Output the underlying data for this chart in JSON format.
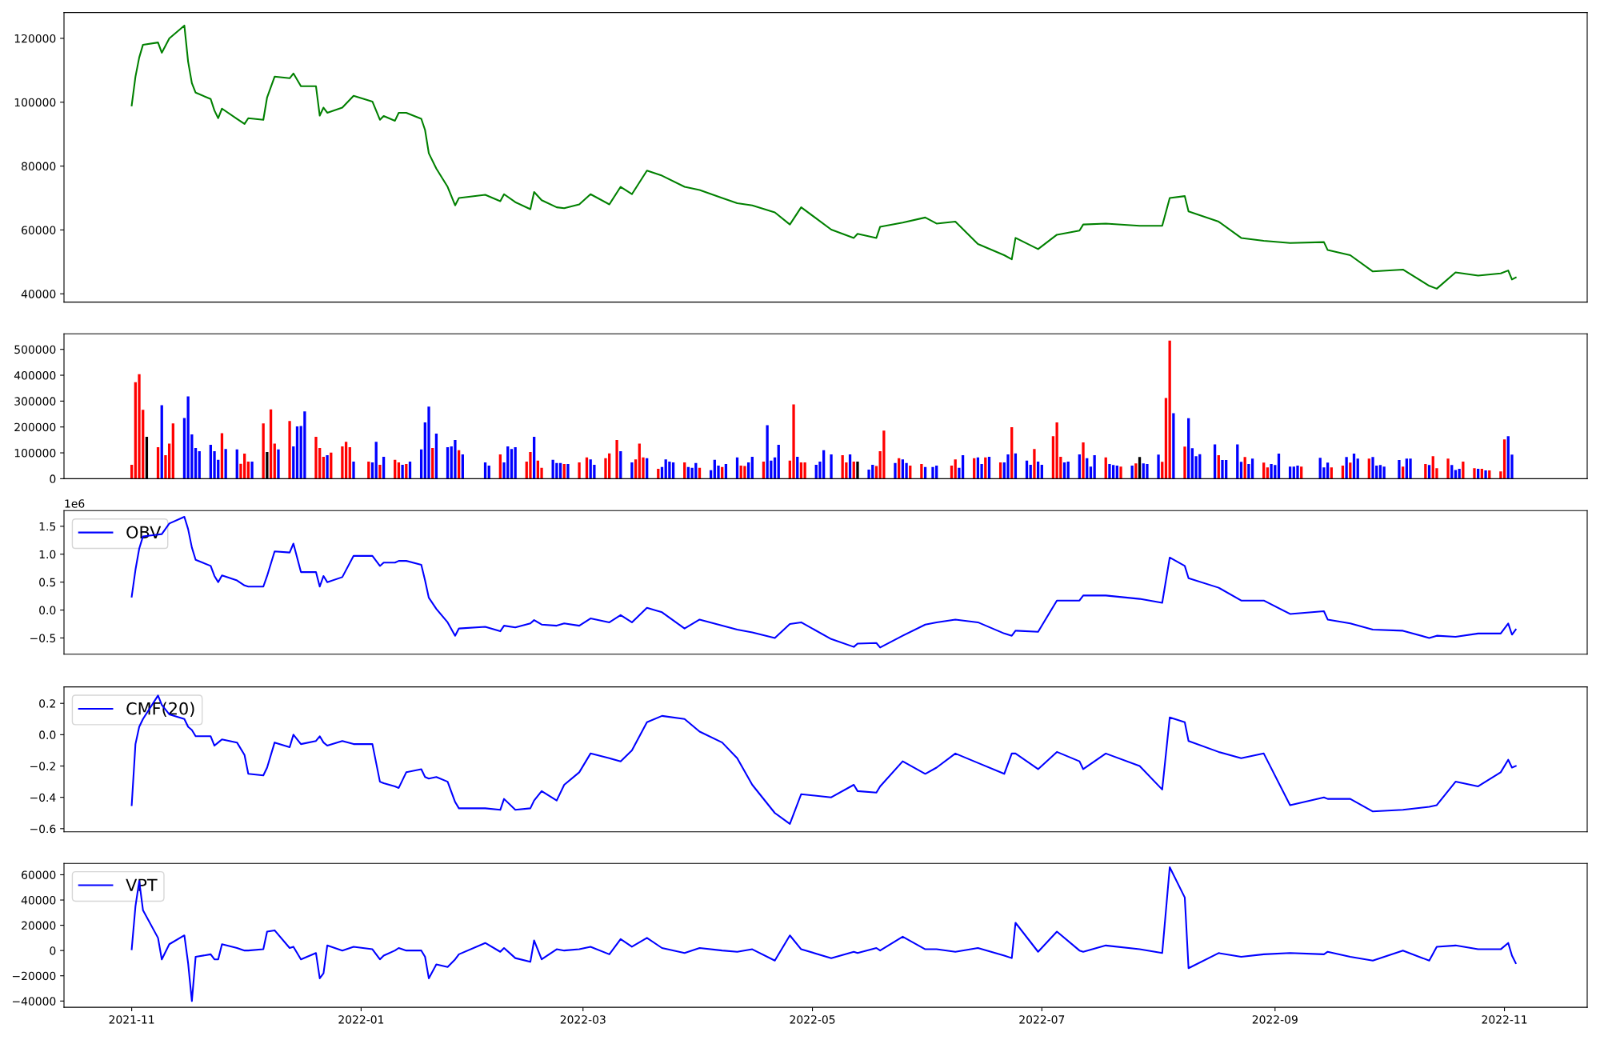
{
  "chart_data": [
    {
      "type": "line",
      "xlim": [
        "2021-10-14",
        "2022-11-23"
      ],
      "ylim": [
        37400,
        128100
      ],
      "yticks": [
        40000,
        60000,
        80000,
        100000,
        120000
      ],
      "tick_labels": "y",
      "series": [
        {
          "color": "#008000",
          "x": [
            "2021-11-01",
            "2021-11-02",
            "2021-11-03",
            "2021-11-04",
            "2021-11-08",
            "2021-11-09",
            "2021-11-11",
            "2021-11-15",
            "2021-11-16",
            "2021-11-17",
            "2021-11-18",
            "2021-11-22",
            "2021-11-23",
            "2021-11-24",
            "2021-11-25",
            "2021-11-29",
            "2021-12-01",
            "2021-12-02",
            "2021-12-06",
            "2021-12-07",
            "2021-12-09",
            "2021-12-13",
            "2021-12-14",
            "2021-12-16",
            "2021-12-20",
            "2021-12-21",
            "2021-12-22",
            "2021-12-23",
            "2021-12-27",
            "2021-12-30",
            "2022-01-04",
            "2022-01-06",
            "2022-01-07",
            "2022-01-10",
            "2022-01-11",
            "2022-01-13",
            "2022-01-17",
            "2022-01-18",
            "2022-01-19",
            "2022-01-21",
            "2022-01-24",
            "2022-01-26",
            "2022-01-27",
            "2022-02-03",
            "2022-02-07",
            "2022-02-08",
            "2022-02-11",
            "2022-02-15",
            "2022-02-16",
            "2022-02-18",
            "2022-02-22",
            "2022-02-24",
            "2022-02-28",
            "2022-03-03",
            "2022-03-08",
            "2022-03-11",
            "2022-03-14",
            "2022-03-18",
            "2022-03-22",
            "2022-03-28",
            "2022-04-01",
            "2022-04-07",
            "2022-04-11",
            "2022-04-15",
            "2022-04-21",
            "2022-04-25",
            "2022-04-28",
            "2022-05-06",
            "2022-05-12",
            "2022-05-13",
            "2022-05-18",
            "2022-05-19",
            "2022-05-25",
            "2022-05-31",
            "2022-06-03",
            "2022-06-08",
            "2022-06-14",
            "2022-06-21",
            "2022-06-23",
            "2022-06-24",
            "2022-06-30",
            "2022-07-05",
            "2022-07-11",
            "2022-07-12",
            "2022-07-18",
            "2022-07-27",
            "2022-08-02",
            "2022-08-04",
            "2022-08-08",
            "2022-08-09",
            "2022-08-17",
            "2022-08-23",
            "2022-08-29",
            "2022-09-05",
            "2022-09-14",
            "2022-09-15",
            "2022-09-21",
            "2022-09-27",
            "2022-10-05",
            "2022-10-12",
            "2022-10-14",
            "2022-10-19",
            "2022-10-25",
            "2022-10-31",
            "2022-11-02",
            "2022-11-03",
            "2022-11-04"
          ],
          "values": [
            99000,
            108000,
            114000,
            118000,
            118700,
            115500,
            120000,
            124000,
            112700,
            106000,
            103000,
            101000,
            97400,
            95000,
            98000,
            94800,
            93200,
            95000,
            94500,
            101500,
            108000,
            107500,
            109000,
            105000,
            105000,
            95800,
            98300,
            96700,
            98300,
            102000,
            100200,
            94500,
            95700,
            94200,
            96700,
            96700,
            94800,
            91300,
            84000,
            79200,
            73500,
            67700,
            70000,
            71000,
            69000,
            71200,
            68700,
            66500,
            71900,
            69300,
            67100,
            66800,
            68000,
            71200,
            68000,
            73500,
            71200,
            78600,
            77000,
            73500,
            72500,
            70000,
            68400,
            67700,
            65500,
            61700,
            67100,
            60100,
            57500,
            58800,
            57500,
            61000,
            62300,
            63900,
            62000,
            62600,
            55600,
            52100,
            50800,
            57500,
            54000,
            58500,
            59800,
            61700,
            62000,
            61300,
            61300,
            70000,
            70600,
            65800,
            62600,
            57500,
            56600,
            55900,
            56200,
            53700,
            52100,
            47000,
            47600,
            42500,
            41600,
            46700,
            45700,
            46400,
            47300,
            44500,
            45100
          ]
        }
      ]
    },
    {
      "type": "bar",
      "xlim": [
        "2021-10-14",
        "2022-11-23"
      ],
      "ylim": [
        0,
        560000
      ],
      "yticks": [
        0,
        100000,
        200000,
        300000,
        400000,
        500000
      ],
      "tick_labels": "y",
      "x": [
        "2021-11-01",
        "2021-11-02",
        "2021-11-03",
        "2021-11-04",
        "2021-11-05",
        "2021-11-08",
        "2021-11-09",
        "2021-11-10",
        "2021-11-11",
        "2021-11-12",
        "2021-11-15",
        "2021-11-16",
        "2021-11-17",
        "2021-11-18",
        "2021-11-19",
        "2021-11-22",
        "2021-11-23",
        "2021-11-24",
        "2021-11-25",
        "2021-11-26",
        "2021-11-29",
        "2021-11-30",
        "2021-12-01",
        "2021-12-02",
        "2021-12-03",
        "2021-12-06",
        "2021-12-07",
        "2021-12-08",
        "2021-12-09",
        "2021-12-10",
        "2021-12-13",
        "2021-12-14",
        "2021-12-15",
        "2021-12-16",
        "2021-12-17",
        "2021-12-20",
        "2021-12-21",
        "2021-12-22",
        "2021-12-23",
        "2021-12-24",
        "2021-12-27",
        "2021-12-28",
        "2021-12-29",
        "2021-12-30",
        "2022-01-03",
        "2022-01-04",
        "2022-01-05",
        "2022-01-06",
        "2022-01-07",
        "2022-01-10",
        "2022-01-11",
        "2022-01-12",
        "2022-01-13",
        "2022-01-14",
        "2022-01-17",
        "2022-01-18",
        "2022-01-19",
        "2022-01-20",
        "2022-01-21",
        "2022-01-24",
        "2022-01-25",
        "2022-01-26",
        "2022-01-27",
        "2022-01-28",
        "2022-02-03",
        "2022-02-04",
        "2022-02-07",
        "2022-02-08",
        "2022-02-09",
        "2022-02-10",
        "2022-02-11",
        "2022-02-14",
        "2022-02-15",
        "2022-02-16",
        "2022-02-17",
        "2022-02-18",
        "2022-02-21",
        "2022-02-22",
        "2022-02-23",
        "2022-02-24",
        "2022-02-25",
        "2022-02-28",
        "2022-03-02",
        "2022-03-03",
        "2022-03-04",
        "2022-03-07",
        "2022-03-08",
        "2022-03-10",
        "2022-03-11",
        "2022-03-14",
        "2022-03-15",
        "2022-03-16",
        "2022-03-17",
        "2022-03-18",
        "2022-03-21",
        "2022-03-22",
        "2022-03-23",
        "2022-03-24",
        "2022-03-25",
        "2022-03-28",
        "2022-03-29",
        "2022-03-30",
        "2022-03-31",
        "2022-04-01",
        "2022-04-04",
        "2022-04-05",
        "2022-04-06",
        "2022-04-07",
        "2022-04-08",
        "2022-04-11",
        "2022-04-12",
        "2022-04-13",
        "2022-04-14",
        "2022-04-15",
        "2022-04-18",
        "2022-04-19",
        "2022-04-20",
        "2022-04-21",
        "2022-04-22",
        "2022-04-25",
        "2022-04-26",
        "2022-04-27",
        "2022-04-28",
        "2022-04-29",
        "2022-05-02",
        "2022-05-03",
        "2022-05-04",
        "2022-05-06",
        "2022-05-09",
        "2022-05-10",
        "2022-05-11",
        "2022-05-12",
        "2022-05-13",
        "2022-05-16",
        "2022-05-17",
        "2022-05-18",
        "2022-05-19",
        "2022-05-20",
        "2022-05-23",
        "2022-05-24",
        "2022-05-25",
        "2022-05-26",
        "2022-05-27",
        "2022-05-30",
        "2022-05-31",
        "2022-06-02",
        "2022-06-03",
        "2022-06-07",
        "2022-06-08",
        "2022-06-09",
        "2022-06-10",
        "2022-06-13",
        "2022-06-14",
        "2022-06-15",
        "2022-06-16",
        "2022-06-17",
        "2022-06-20",
        "2022-06-21",
        "2022-06-22",
        "2022-06-23",
        "2022-06-24",
        "2022-06-27",
        "2022-06-28",
        "2022-06-29",
        "2022-06-30",
        "2022-07-01",
        "2022-07-04",
        "2022-07-05",
        "2022-07-06",
        "2022-07-07",
        "2022-07-08",
        "2022-07-11",
        "2022-07-12",
        "2022-07-13",
        "2022-07-14",
        "2022-07-15",
        "2022-07-18",
        "2022-07-19",
        "2022-07-20",
        "2022-07-21",
        "2022-07-22",
        "2022-07-25",
        "2022-07-26",
        "2022-07-27",
        "2022-07-28",
        "2022-07-29",
        "2022-08-01",
        "2022-08-02",
        "2022-08-03",
        "2022-08-04",
        "2022-08-05",
        "2022-08-08",
        "2022-08-09",
        "2022-08-10",
        "2022-08-11",
        "2022-08-12",
        "2022-08-16",
        "2022-08-17",
        "2022-08-18",
        "2022-08-19",
        "2022-08-22",
        "2022-08-23",
        "2022-08-24",
        "2022-08-25",
        "2022-08-26",
        "2022-08-29",
        "2022-08-30",
        "2022-08-31",
        "2022-09-01",
        "2022-09-02",
        "2022-09-05",
        "2022-09-06",
        "2022-09-07",
        "2022-09-08",
        "2022-09-13",
        "2022-09-14",
        "2022-09-15",
        "2022-09-16",
        "2022-09-19",
        "2022-09-20",
        "2022-09-21",
        "2022-09-22",
        "2022-09-23",
        "2022-09-26",
        "2022-09-27",
        "2022-09-28",
        "2022-09-29",
        "2022-09-30",
        "2022-10-04",
        "2022-10-05",
        "2022-10-06",
        "2022-10-07",
        "2022-10-11",
        "2022-10-12",
        "2022-10-13",
        "2022-10-14",
        "2022-10-17",
        "2022-10-18",
        "2022-10-19",
        "2022-10-20",
        "2022-10-21",
        "2022-10-24",
        "2022-10-25",
        "2022-10-26",
        "2022-10-27",
        "2022-10-28",
        "2022-10-31",
        "2022-11-01",
        "2022-11-02",
        "2022-11-03"
      ],
      "values": [
        54000,
        373000,
        404000,
        266000,
        162000,
        122000,
        284000,
        91000,
        136000,
        214000,
        235000,
        318000,
        171000,
        119000,
        106000,
        131000,
        106000,
        73000,
        176000,
        115000,
        113000,
        58000,
        97000,
        66000,
        66000,
        214000,
        103000,
        268000,
        136000,
        113000,
        223000,
        125000,
        202000,
        204000,
        260000,
        162000,
        119000,
        85000,
        91000,
        101000,
        125000,
        143000,
        122000,
        66000,
        66000,
        63000,
        143000,
        54000,
        85000,
        73000,
        63000,
        54000,
        57000,
        66000,
        113000,
        218000,
        279000,
        119000,
        174000,
        122000,
        125000,
        150000,
        110000,
        94000,
        63000,
        51000,
        94000,
        63000,
        125000,
        115000,
        122000,
        66000,
        103000,
        162000,
        70000,
        42000,
        73000,
        61000,
        61000,
        57000,
        57000,
        63000,
        82000,
        75000,
        54000,
        79000,
        98000,
        150000,
        106000,
        63000,
        75000,
        136000,
        82000,
        79000,
        38000,
        45000,
        75000,
        66000,
        63000,
        63000,
        45000,
        42000,
        61000,
        42000,
        33000,
        73000,
        51000,
        45000,
        57000,
        82000,
        51000,
        49000,
        63000,
        85000,
        66000,
        207000,
        70000,
        82000,
        131000,
        70000,
        287000,
        85000,
        63000,
        63000,
        54000,
        66000,
        110000,
        94000,
        91000,
        63000,
        94000,
        66000,
        66000,
        35000,
        54000,
        49000,
        106000,
        186000,
        61000,
        79000,
        75000,
        61000,
        51000,
        57000,
        45000,
        45000,
        51000,
        51000,
        75000,
        42000,
        91000,
        79000,
        82000,
        57000,
        82000,
        85000,
        63000,
        63000,
        94000,
        199000,
        98000,
        70000,
        54000,
        115000,
        66000,
        54000,
        164000,
        218000,
        85000,
        63000,
        66000,
        94000,
        140000,
        79000,
        47000,
        91000,
        82000,
        57000,
        53000,
        51000,
        47000,
        51000,
        59000,
        84000,
        59000,
        57000,
        93000,
        65000,
        312000,
        534000,
        253000,
        124000,
        234000,
        118000,
        87000,
        95000,
        133000,
        91000,
        72000,
        72000,
        133000,
        65000,
        84000,
        57000,
        78000,
        62000,
        44000,
        57000,
        53000,
        97000,
        47000,
        47000,
        51000,
        47000,
        81000,
        44000,
        62000,
        44000,
        51000,
        84000,
        62000,
        97000,
        78000,
        78000,
        84000,
        51000,
        53000,
        47000,
        72000,
        47000,
        78000,
        78000,
        57000,
        53000,
        87000,
        41000,
        78000,
        53000,
        34000,
        38000,
        66000,
        41000,
        38000,
        38000,
        32000,
        32000,
        28000,
        152000,
        164000,
        93000
      ],
      "colors": [
        "#ff0000",
        "#ff0000",
        "#ff0000",
        "#ff0000",
        "#000000",
        "#ff0000",
        "#0000ff",
        "#ff0000",
        "#ff0000",
        "#ff0000",
        "#0000ff",
        "#0000ff",
        "#0000ff",
        "#0000ff",
        "#0000ff",
        "#0000ff",
        "#0000ff",
        "#0000ff",
        "#ff0000",
        "#0000ff",
        "#0000ff",
        "#ff0000",
        "#ff0000",
        "#ff0000",
        "#0000ff",
        "#ff0000",
        "#000000",
        "#ff0000",
        "#ff0000",
        "#0000ff",
        "#ff0000",
        "#0000ff",
        "#0000ff",
        "#0000ff",
        "#0000ff",
        "#ff0000",
        "#ff0000",
        "#ff0000",
        "#0000ff",
        "#ff0000",
        "#ff0000",
        "#ff0000",
        "#ff0000",
        "#0000ff",
        "#ff0000",
        "#0000ff",
        "#0000ff",
        "#ff0000",
        "#0000ff",
        "#ff0000",
        "#ff0000",
        "#0000ff",
        "#ff0000",
        "#0000ff",
        "#0000ff",
        "#0000ff",
        "#0000ff",
        "#ff0000",
        "#0000ff",
        "#0000ff",
        "#0000ff",
        "#0000ff",
        "#ff0000",
        "#0000ff",
        "#0000ff",
        "#0000ff",
        "#ff0000",
        "#0000ff",
        "#0000ff",
        "#0000ff",
        "#0000ff",
        "#ff0000",
        "#ff0000",
        "#0000ff",
        "#ff0000",
        "#ff0000",
        "#0000ff",
        "#0000ff",
        "#0000ff",
        "#ff0000",
        "#0000ff",
        "#ff0000",
        "#ff0000",
        "#0000ff",
        "#0000ff",
        "#ff0000",
        "#ff0000",
        "#ff0000",
        "#0000ff",
        "#0000ff",
        "#ff0000",
        "#ff0000",
        "#ff0000",
        "#0000ff",
        "#ff0000",
        "#0000ff",
        "#0000ff",
        "#0000ff",
        "#0000ff",
        "#ff0000",
        "#0000ff",
        "#0000ff",
        "#0000ff",
        "#ff0000",
        "#0000ff",
        "#0000ff",
        "#0000ff",
        "#ff0000",
        "#0000ff",
        "#0000ff",
        "#ff0000",
        "#ff0000",
        "#0000ff",
        "#0000ff",
        "#ff0000",
        "#0000ff",
        "#0000ff",
        "#0000ff",
        "#0000ff",
        "#ff0000",
        "#ff0000",
        "#0000ff",
        "#ff0000",
        "#ff0000",
        "#0000ff",
        "#0000ff",
        "#0000ff",
        "#0000ff",
        "#ff0000",
        "#ff0000",
        "#0000ff",
        "#ff0000",
        "#000000",
        "#0000ff",
        "#0000ff",
        "#ff0000",
        "#ff0000",
        "#ff0000",
        "#0000ff",
        "#ff0000",
        "#0000ff",
        "#0000ff",
        "#ff0000",
        "#ff0000",
        "#0000ff",
        "#0000ff",
        "#0000ff",
        "#ff0000",
        "#ff0000",
        "#0000ff",
        "#0000ff",
        "#ff0000",
        "#0000ff",
        "#0000ff",
        "#ff0000",
        "#0000ff",
        "#ff0000",
        "#0000ff",
        "#0000ff",
        "#ff0000",
        "#0000ff",
        "#0000ff",
        "#0000ff",
        "#ff0000",
        "#0000ff",
        "#0000ff",
        "#ff0000",
        "#ff0000",
        "#ff0000",
        "#0000ff",
        "#0000ff",
        "#0000ff",
        "#ff0000",
        "#0000ff",
        "#0000ff",
        "#0000ff",
        "#ff0000",
        "#0000ff",
        "#0000ff",
        "#0000ff",
        "#ff0000",
        "#0000ff",
        "#ff0000",
        "#000000",
        "#0000ff",
        "#0000ff",
        "#0000ff",
        "#ff0000",
        "#ff0000",
        "#ff0000",
        "#0000ff",
        "#ff0000",
        "#0000ff",
        "#0000ff",
        "#0000ff",
        "#0000ff",
        "#0000ff",
        "#ff0000",
        "#0000ff",
        "#0000ff",
        "#0000ff",
        "#0000ff",
        "#ff0000",
        "#0000ff",
        "#0000ff",
        "#ff0000",
        "#ff0000",
        "#0000ff",
        "#0000ff",
        "#0000ff",
        "#0000ff",
        "#0000ff",
        "#0000ff",
        "#ff0000",
        "#0000ff",
        "#0000ff",
        "#0000ff",
        "#ff0000",
        "#ff0000",
        "#0000ff",
        "#ff0000",
        "#0000ff",
        "#0000ff",
        "#ff0000",
        "#0000ff",
        "#0000ff",
        "#0000ff",
        "#0000ff",
        "#0000ff",
        "#ff0000",
        "#0000ff",
        "#0000ff",
        "#ff0000",
        "#0000ff",
        "#ff0000",
        "#ff0000",
        "#ff0000",
        "#0000ff",
        "#0000ff",
        "#0000ff",
        "#ff0000",
        "#ff0000",
        "#0000ff",
        "#ff0000",
        "#0000ff",
        "#ff0000",
        "#ff0000",
        "#ff0000",
        "#0000ff",
        "#0000ff"
      ]
    },
    {
      "type": "line",
      "xlim": [
        "2021-10-14",
        "2022-11-23"
      ],
      "ylim": [
        -0.79,
        1.78
      ],
      "yticks": [
        {
          "value": -0.5,
          "label": "−0.5"
        },
        {
          "value": 0,
          "label": "0.0"
        },
        0.5,
        {
          "value": 1,
          "label": "1.0"
        },
        1.5
      ],
      "tick_labels": "y",
      "legend": "top left",
      "annotations": [
        "1e6"
      ],
      "series": [
        {
          "name": "OBV",
          "color": "#0000ff",
          "x": [
            "2021-11-01",
            "2021-11-02",
            "2021-11-03",
            "2021-11-04",
            "2021-11-08",
            "2021-11-09",
            "2021-11-11",
            "2021-11-15",
            "2021-11-16",
            "2021-11-17",
            "2021-11-18",
            "2021-11-22",
            "2021-11-23",
            "2021-11-24",
            "2021-11-25",
            "2021-11-29",
            "2021-12-01",
            "2021-12-02",
            "2021-12-06",
            "2021-12-07",
            "2021-12-09",
            "2021-12-13",
            "2021-12-14",
            "2021-12-16",
            "2021-12-20",
            "2021-12-21",
            "2021-12-22",
            "2021-12-23",
            "2021-12-27",
            "2021-12-30",
            "2022-01-04",
            "2022-01-06",
            "2022-01-07",
            "2022-01-10",
            "2022-01-11",
            "2022-01-13",
            "2022-01-17",
            "2022-01-18",
            "2022-01-19",
            "2022-01-21",
            "2022-01-24",
            "2022-01-26",
            "2022-01-27",
            "2022-02-03",
            "2022-02-07",
            "2022-02-08",
            "2022-02-11",
            "2022-02-15",
            "2022-02-16",
            "2022-02-18",
            "2022-02-22",
            "2022-02-24",
            "2022-02-28",
            "2022-03-03",
            "2022-03-08",
            "2022-03-11",
            "2022-03-14",
            "2022-03-18",
            "2022-03-22",
            "2022-03-28",
            "2022-04-01",
            "2022-04-07",
            "2022-04-11",
            "2022-04-15",
            "2022-04-21",
            "2022-04-25",
            "2022-04-28",
            "2022-05-06",
            "2022-05-12",
            "2022-05-13",
            "2022-05-18",
            "2022-05-19",
            "2022-05-25",
            "2022-05-31",
            "2022-06-03",
            "2022-06-08",
            "2022-06-14",
            "2022-06-21",
            "2022-06-23",
            "2022-06-24",
            "2022-06-30",
            "2022-07-05",
            "2022-07-11",
            "2022-07-12",
            "2022-07-18",
            "2022-07-27",
            "2022-08-02",
            "2022-08-04",
            "2022-08-08",
            "2022-08-09",
            "2022-08-17",
            "2022-08-23",
            "2022-08-29",
            "2022-09-05",
            "2022-09-14",
            "2022-09-15",
            "2022-09-21",
            "2022-09-27",
            "2022-10-05",
            "2022-10-12",
            "2022-10-14",
            "2022-10-19",
            "2022-10-25",
            "2022-10-31",
            "2022-11-02",
            "2022-11-03",
            "2022-11-04"
          ],
          "values": [
            0.24,
            0.72,
            1.1,
            1.32,
            1.35,
            1.36,
            1.55,
            1.67,
            1.45,
            1.12,
            0.9,
            0.79,
            0.61,
            0.5,
            0.62,
            0.53,
            0.44,
            0.42,
            0.42,
            0.61,
            1.05,
            1.03,
            1.19,
            0.68,
            0.68,
            0.42,
            0.61,
            0.5,
            0.59,
            0.97,
            0.97,
            0.79,
            0.85,
            0.85,
            0.88,
            0.88,
            0.81,
            0.53,
            0.22,
            0.02,
            -0.22,
            -0.46,
            -0.33,
            -0.3,
            -0.38,
            -0.28,
            -0.31,
            -0.24,
            -0.18,
            -0.26,
            -0.28,
            -0.24,
            -0.28,
            -0.15,
            -0.22,
            -0.09,
            -0.22,
            0.04,
            -0.04,
            -0.33,
            -0.17,
            -0.28,
            -0.35,
            -0.4,
            -0.5,
            -0.25,
            -0.22,
            -0.52,
            -0.66,
            -0.6,
            -0.59,
            -0.67,
            -0.46,
            -0.26,
            -0.22,
            -0.17,
            -0.22,
            -0.42,
            -0.46,
            -0.37,
            -0.39,
            0.17,
            0.17,
            0.26,
            0.26,
            0.2,
            0.13,
            0.94,
            0.79,
            0.57,
            0.4,
            0.17,
            0.17,
            -0.07,
            -0.02,
            -0.17,
            -0.24,
            -0.35,
            -0.37,
            -0.5,
            -0.46,
            -0.48,
            -0.42,
            -0.42,
            -0.24,
            -0.44,
            -0.35
          ]
        }
      ]
    },
    {
      "type": "line",
      "xlim": [
        "2021-10-14",
        "2022-11-23"
      ],
      "ylim": [
        -0.62,
        0.305
      ],
      "yticks": [
        {
          "value": -0.6,
          "label": "−0.6"
        },
        {
          "value": -0.4,
          "label": "−0.4"
        },
        {
          "value": -0.2,
          "label": "−0.2"
        },
        {
          "value": 0,
          "label": "0.0"
        },
        {
          "value": 0.2,
          "label": "0.2"
        }
      ],
      "tick_labels": "y",
      "legend": "top left",
      "series": [
        {
          "name": "CMF(20)",
          "color": "#0000ff",
          "x": [
            "2021-11-01",
            "2021-11-02",
            "2021-11-03",
            "2021-11-04",
            "2021-11-08",
            "2021-11-09",
            "2021-11-11",
            "2021-11-15",
            "2021-11-16",
            "2021-11-17",
            "2021-11-18",
            "2021-11-22",
            "2021-11-23",
            "2021-11-24",
            "2021-11-25",
            "2021-11-29",
            "2021-12-01",
            "2021-12-02",
            "2021-12-06",
            "2021-12-07",
            "2021-12-09",
            "2021-12-13",
            "2021-12-14",
            "2021-12-16",
            "2021-12-20",
            "2021-12-21",
            "2021-12-22",
            "2021-12-23",
            "2021-12-27",
            "2021-12-30",
            "2022-01-04",
            "2022-01-06",
            "2022-01-07",
            "2022-01-10",
            "2022-01-11",
            "2022-01-13",
            "2022-01-17",
            "2022-01-18",
            "2022-01-19",
            "2022-01-21",
            "2022-01-24",
            "2022-01-26",
            "2022-01-27",
            "2022-02-03",
            "2022-02-07",
            "2022-02-08",
            "2022-02-11",
            "2022-02-15",
            "2022-02-16",
            "2022-02-18",
            "2022-02-22",
            "2022-02-24",
            "2022-02-28",
            "2022-03-03",
            "2022-03-08",
            "2022-03-11",
            "2022-03-14",
            "2022-03-18",
            "2022-03-22",
            "2022-03-28",
            "2022-04-01",
            "2022-04-07",
            "2022-04-11",
            "2022-04-15",
            "2022-04-21",
            "2022-04-25",
            "2022-04-28",
            "2022-05-06",
            "2022-05-12",
            "2022-05-13",
            "2022-05-18",
            "2022-05-19",
            "2022-05-25",
            "2022-05-31",
            "2022-06-03",
            "2022-06-08",
            "2022-06-14",
            "2022-06-21",
            "2022-06-23",
            "2022-06-24",
            "2022-06-30",
            "2022-07-05",
            "2022-07-11",
            "2022-07-12",
            "2022-07-18",
            "2022-07-27",
            "2022-08-02",
            "2022-08-04",
            "2022-08-08",
            "2022-08-09",
            "2022-08-17",
            "2022-08-23",
            "2022-08-29",
            "2022-09-05",
            "2022-09-14",
            "2022-09-15",
            "2022-09-21",
            "2022-09-27",
            "2022-10-05",
            "2022-10-12",
            "2022-10-14",
            "2022-10-19",
            "2022-10-25",
            "2022-10-31",
            "2022-11-02",
            "2022-11-03",
            "2022-11-04"
          ],
          "values": [
            -0.45,
            -0.06,
            0.05,
            0.1,
            0.25,
            0.19,
            0.13,
            0.1,
            0.05,
            0.03,
            -0.01,
            -0.01,
            -0.07,
            -0.05,
            -0.03,
            -0.05,
            -0.13,
            -0.25,
            -0.26,
            -0.21,
            -0.05,
            -0.08,
            0.0,
            -0.06,
            -0.04,
            -0.01,
            -0.05,
            -0.07,
            -0.04,
            -0.06,
            -0.06,
            -0.3,
            -0.31,
            -0.33,
            -0.34,
            -0.24,
            -0.22,
            -0.27,
            -0.28,
            -0.27,
            -0.3,
            -0.43,
            -0.47,
            -0.47,
            -0.48,
            -0.41,
            -0.48,
            -0.47,
            -0.42,
            -0.36,
            -0.42,
            -0.32,
            -0.24,
            -0.12,
            -0.15,
            -0.17,
            -0.1,
            0.08,
            0.12,
            0.1,
            0.02,
            -0.05,
            -0.15,
            -0.32,
            -0.5,
            -0.57,
            -0.38,
            -0.4,
            -0.32,
            -0.36,
            -0.37,
            -0.33,
            -0.17,
            -0.25,
            -0.21,
            -0.12,
            -0.18,
            -0.25,
            -0.12,
            -0.12,
            -0.22,
            -0.11,
            -0.17,
            -0.22,
            -0.12,
            -0.2,
            -0.35,
            0.11,
            0.08,
            -0.04,
            -0.11,
            -0.15,
            -0.12,
            -0.45,
            -0.4,
            -0.41,
            -0.41,
            -0.49,
            -0.48,
            -0.46,
            -0.45,
            -0.3,
            -0.33,
            -0.24,
            -0.16,
            -0.21,
            -0.2
          ]
        }
      ]
    },
    {
      "type": "line",
      "xlim": [
        "2021-10-14",
        "2022-11-23"
      ],
      "ylim": [
        -45000,
        69000
      ],
      "yticks": [
        {
          "value": -40000,
          "label": "−40000"
        },
        {
          "value": -20000,
          "label": "−20000"
        },
        0,
        20000,
        40000,
        60000
      ],
      "xticks": [
        {
          "value": "2021-11-01",
          "label": "2021-11"
        },
        {
          "value": "2022-01-01",
          "label": "2022-01"
        },
        {
          "value": "2022-03-01",
          "label": "2022-03"
        },
        {
          "value": "2022-05-01",
          "label": "2022-05"
        },
        {
          "value": "2022-07-01",
          "label": "2022-07"
        },
        {
          "value": "2022-09-01",
          "label": "2022-09"
        },
        {
          "value": "2022-11-01",
          "label": "2022-11"
        }
      ],
      "legend": "top left",
      "series": [
        {
          "name": "VPT",
          "color": "#0000ff",
          "x": [
            "2021-11-01",
            "2021-11-02",
            "2021-11-03",
            "2021-11-04",
            "2021-11-08",
            "2021-11-09",
            "2021-11-11",
            "2021-11-15",
            "2021-11-16",
            "2021-11-17",
            "2021-11-18",
            "2021-11-22",
            "2021-11-23",
            "2021-11-24",
            "2021-11-25",
            "2021-11-29",
            "2021-12-01",
            "2021-12-02",
            "2021-12-06",
            "2021-12-07",
            "2021-12-09",
            "2021-12-13",
            "2021-12-14",
            "2021-12-16",
            "2021-12-20",
            "2021-12-21",
            "2021-12-22",
            "2021-12-23",
            "2021-12-27",
            "2021-12-30",
            "2022-01-04",
            "2022-01-06",
            "2022-01-07",
            "2022-01-10",
            "2022-01-11",
            "2022-01-13",
            "2022-01-17",
            "2022-01-18",
            "2022-01-19",
            "2022-01-21",
            "2022-01-24",
            "2022-01-26",
            "2022-01-27",
            "2022-02-03",
            "2022-02-07",
            "2022-02-08",
            "2022-02-11",
            "2022-02-15",
            "2022-02-16",
            "2022-02-18",
            "2022-02-22",
            "2022-02-24",
            "2022-02-28",
            "2022-03-03",
            "2022-03-08",
            "2022-03-11",
            "2022-03-14",
            "2022-03-18",
            "2022-03-22",
            "2022-03-28",
            "2022-04-01",
            "2022-04-07",
            "2022-04-11",
            "2022-04-15",
            "2022-04-21",
            "2022-04-25",
            "2022-04-28",
            "2022-05-06",
            "2022-05-12",
            "2022-05-13",
            "2022-05-18",
            "2022-05-19",
            "2022-05-25",
            "2022-05-31",
            "2022-06-03",
            "2022-06-08",
            "2022-06-14",
            "2022-06-21",
            "2022-06-23",
            "2022-06-24",
            "2022-06-30",
            "2022-07-05",
            "2022-07-11",
            "2022-07-12",
            "2022-07-18",
            "2022-07-27",
            "2022-08-02",
            "2022-08-04",
            "2022-08-08",
            "2022-08-09",
            "2022-08-17",
            "2022-08-23",
            "2022-08-29",
            "2022-09-05",
            "2022-09-14",
            "2022-09-15",
            "2022-09-21",
            "2022-09-27",
            "2022-10-05",
            "2022-10-12",
            "2022-10-14",
            "2022-10-19",
            "2022-10-25",
            "2022-10-31",
            "2022-11-02",
            "2022-11-03",
            "2022-11-04"
          ],
          "values": [
            1000,
            35000,
            55000,
            32000,
            10000,
            -7000,
            5000,
            12000,
            -10000,
            -40000,
            -5000,
            -3000,
            -7000,
            -7000,
            5000,
            2000,
            0,
            0,
            1000,
            15000,
            16000,
            2000,
            3000,
            -7000,
            -2000,
            -22000,
            -18000,
            4000,
            0,
            3000,
            1000,
            -7000,
            -4000,
            0,
            2000,
            0,
            0,
            -5000,
            -22000,
            -11000,
            -13000,
            -7000,
            -3000,
            6000,
            -1000,
            2000,
            -6000,
            -9000,
            8000,
            -7000,
            1000,
            0,
            1000,
            3000,
            -3000,
            9000,
            3000,
            10000,
            2000,
            -2000,
            2000,
            0,
            -1000,
            1000,
            -8000,
            12000,
            1000,
            -6000,
            -1000,
            -2000,
            2000,
            0,
            11000,
            1000,
            1000,
            -1000,
            2000,
            -4000,
            -6000,
            22000,
            -1000,
            15000,
            0,
            -1000,
            4000,
            1000,
            -2000,
            66000,
            42000,
            -14000,
            -2000,
            -5000,
            -3000,
            -2000,
            -3000,
            -1000,
            -5000,
            -8000,
            0,
            -8000,
            3000,
            4000,
            1000,
            1000,
            6000,
            -4000,
            -10000
          ]
        }
      ]
    }
  ]
}
